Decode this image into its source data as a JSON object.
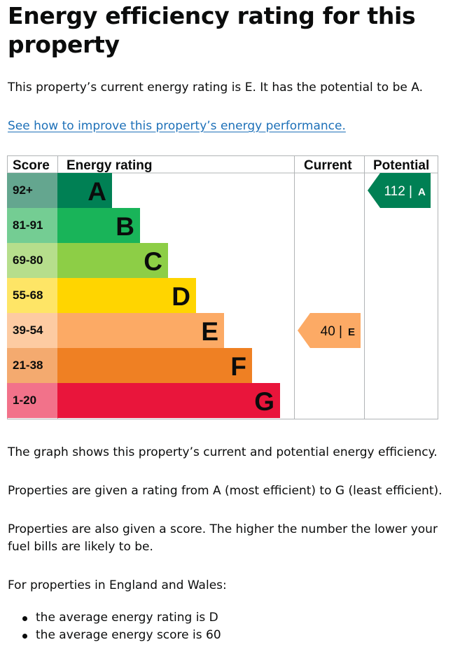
{
  "page": {
    "title": "Energy efficiency rating for this property",
    "summary": "This property’s current energy rating is E. It has the potential to be A.",
    "improve_link": "See how to improve this property’s energy performance.",
    "graph_explanation": "The graph shows this property’s current and potential energy efficiency.",
    "rating_explanation": "Properties are given a rating from A (most efficient) to G (least efficient).",
    "score_explanation": "Properties are also given a score. The higher the number the lower your fuel bills are likely to be.",
    "averages_intro": "For properties in England and Wales:",
    "averages": [
      "the average energy rating is D",
      "the average energy score is 60"
    ]
  },
  "chart_data": {
    "type": "bar",
    "columns": [
      "Score",
      "Energy rating",
      "Current",
      "Potential"
    ],
    "bands": [
      {
        "letter": "A",
        "score_range": "92+",
        "min": 92,
        "color": "#008054",
        "score_bg": "#64a68f"
      },
      {
        "letter": "B",
        "score_range": "81-91",
        "min": 81,
        "color": "#19b459",
        "score_bg": "#74cd93"
      },
      {
        "letter": "C",
        "score_range": "69-80",
        "min": 69,
        "color": "#8dce46",
        "score_bg": "#b6de8c"
      },
      {
        "letter": "D",
        "score_range": "55-68",
        "min": 55,
        "color": "#ffd500",
        "score_bg": "#fee566"
      },
      {
        "letter": "E",
        "score_range": "39-54",
        "min": 39,
        "color": "#fcaa65",
        "score_bg": "#fdcba2"
      },
      {
        "letter": "F",
        "score_range": "21-38",
        "min": 21,
        "color": "#ef8023",
        "score_bg": "#f4aa6f"
      },
      {
        "letter": "G",
        "score_range": "1-20",
        "min": 1,
        "color": "#e9153b",
        "score_bg": "#f2728a"
      }
    ],
    "current": {
      "score": 40,
      "letter": "E",
      "score_text": "40 |",
      "color": "#fcaa65"
    },
    "potential": {
      "score": 112,
      "letter": "A",
      "score_text": "112 |",
      "color": "#008054"
    }
  }
}
